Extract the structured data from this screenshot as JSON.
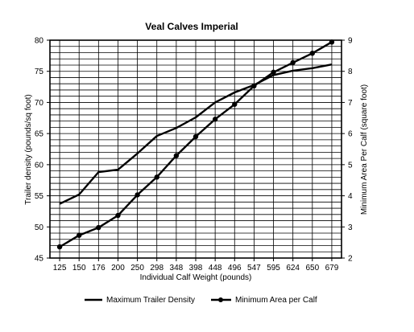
{
  "chart_data": {
    "type": "line",
    "title": "Veal Calves Imperial",
    "xlabel": "Individual Calf Weight (pounds)",
    "ylabel": "Trailer density (pounds/sq foot)",
    "y2label": "Minimum Area Per Calf (square foot)",
    "categories": [
      "125",
      "150",
      "176",
      "200",
      "250",
      "298",
      "348",
      "398",
      "448",
      "496",
      "547",
      "595",
      "624",
      "650",
      "679"
    ],
    "ylim": [
      45,
      80
    ],
    "y_ticks": [
      45,
      50,
      55,
      60,
      65,
      70,
      75,
      80
    ],
    "y2lim": [
      2,
      9
    ],
    "y2_ticks": [
      2,
      3,
      4,
      5,
      6,
      7,
      8,
      9
    ],
    "grid": true,
    "legend_position": "bottom",
    "series": [
      {
        "name": "Maximum Trailer Density",
        "axis": "left",
        "markers": false,
        "values": [
          53.7,
          55.2,
          58.8,
          59.2,
          61.8,
          64.6,
          65.9,
          67.6,
          70.0,
          71.6,
          72.8,
          74.4,
          75.1,
          75.5,
          76.1
        ]
      },
      {
        "name": "Minimum Area per Calf",
        "axis": "right",
        "markers": true,
        "values": [
          2.36,
          2.73,
          2.98,
          3.37,
          4.03,
          4.6,
          5.29,
          5.9,
          6.46,
          6.94,
          7.53,
          7.97,
          8.28,
          8.58,
          8.94
        ]
      }
    ],
    "colors": {
      "line": "#000000",
      "grid": "#000000"
    }
  }
}
